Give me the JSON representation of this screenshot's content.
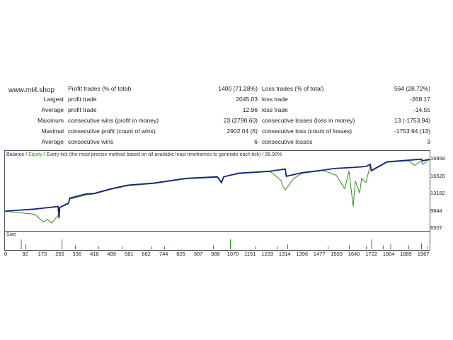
{
  "watermark": "www.mt4.shop",
  "stats": [
    {
      "label": "",
      "k1": "Profit trades (% of total)",
      "v1": "1400 (71.28%)",
      "k2": "Loss trades (% of total)",
      "v2": "564 (28.72%)"
    },
    {
      "label": "Largest",
      "k1": "profit trade",
      "v1": "2045.03",
      "k2": "loss trade",
      "v2": "-268.17"
    },
    {
      "label": "Average",
      "k1": "profit trade",
      "v1": "12.96",
      "k2": "loss trade",
      "v2": "-14.55"
    },
    {
      "label": "Maximum",
      "k1": "consecutive wins (profit in money)",
      "v1": "23 (2790.60)",
      "k2": "consecutive losses (loss in money)",
      "v2": "13 (-1753.94)"
    },
    {
      "label": "Maximal",
      "k1": "consecutive profit (count of wins)",
      "v1": "2902.04 (6)",
      "k2": "consecutive loss (count of losses)",
      "v2": "-1753.94 (13)"
    },
    {
      "label": "Average",
      "k1": "consecutive wins",
      "v1": "6",
      "k2": "consecutive losses",
      "v2": "3"
    }
  ],
  "legend": {
    "balance": "Balance",
    "sep": " / ",
    "equity": "Equity",
    "rest": " / Every tick (the most precise method based on all available least timeframes to generate each tick) / 99.90%"
  },
  "size_label": "Size",
  "colors": {
    "balance": "#1a237e",
    "equity": "#2e8b22",
    "size": "#2e8b22",
    "grid": "#000000"
  },
  "chart_data": {
    "type": "line",
    "y_ticks": [
      "19858",
      "16520",
      "13182",
      "9844",
      "6507"
    ],
    "ylim": [
      6507,
      19858
    ],
    "x_ticks": [
      "0",
      "92",
      "173",
      "255",
      "336",
      "418",
      "499",
      "581",
      "662",
      "744",
      "825",
      "907",
      "988",
      "1070",
      "1151",
      "1233",
      "1314",
      "1396",
      "1477",
      "1559",
      "1640",
      "1722",
      "1804",
      "1885",
      "1967"
    ],
    "xlim": [
      0,
      2000
    ],
    "series": [
      {
        "name": "Balance",
        "x": [
          0,
          140,
          250,
          255,
          258,
          300,
          305,
          380,
          420,
          500,
          580,
          700,
          800,
          850,
          1000,
          1020,
          1030,
          1100,
          1250,
          1320,
          1325,
          1400,
          1500,
          1550,
          1640,
          1700,
          1720,
          1725,
          1800,
          1900,
          1960,
          1967,
          2000
        ],
        "values": [
          9900,
          10300,
          10800,
          8700,
          10600,
          11500,
          12400,
          13200,
          13300,
          14200,
          14900,
          15300,
          15900,
          16200,
          16500,
          15400,
          16500,
          17200,
          17600,
          18000,
          16600,
          17300,
          17800,
          18100,
          18300,
          18500,
          18900,
          17700,
          19400,
          19700,
          19900,
          19600,
          19858
        ]
      },
      {
        "name": "Equity",
        "x": [
          0,
          140,
          160,
          180,
          200,
          220,
          250,
          255,
          258,
          300,
          305,
          380,
          420,
          500,
          580,
          700,
          800,
          850,
          1000,
          1020,
          1030,
          1100,
          1250,
          1300,
          1310,
          1320,
          1340,
          1360,
          1400,
          1500,
          1560,
          1600,
          1620,
          1640,
          1650,
          1670,
          1680,
          1700,
          1720,
          1725,
          1800,
          1900,
          1930,
          1960,
          1967,
          2000
        ],
        "values": [
          9900,
          9300,
          8600,
          7800,
          8300,
          7600,
          9100,
          8400,
          10600,
          11300,
          12200,
          13000,
          13200,
          14100,
          14800,
          15200,
          15800,
          16100,
          16400,
          15300,
          16500,
          17100,
          17500,
          15800,
          14600,
          14000,
          15100,
          16200,
          17200,
          17700,
          16800,
          14200,
          17600,
          10800,
          15700,
          13400,
          16200,
          15400,
          18700,
          17600,
          19300,
          19600,
          18700,
          19600,
          18900,
          19858
        ]
      }
    ],
    "size_bars": {
      "x": [
        75,
        97,
        267,
        330,
        440,
        550,
        690,
        750,
        980,
        1060,
        1180,
        1280,
        1330,
        1520,
        1620,
        1700,
        1725,
        1780,
        1815,
        1900,
        1960,
        1990
      ],
      "values": [
        1,
        0.5,
        1,
        0.4,
        0.3,
        0.3,
        0.3,
        0.3,
        0.4,
        1,
        0.3,
        0.3,
        0.5,
        0.3,
        0.4,
        0.3,
        1,
        0.4,
        0.5,
        0.4,
        0.6,
        0.3
      ]
    }
  }
}
